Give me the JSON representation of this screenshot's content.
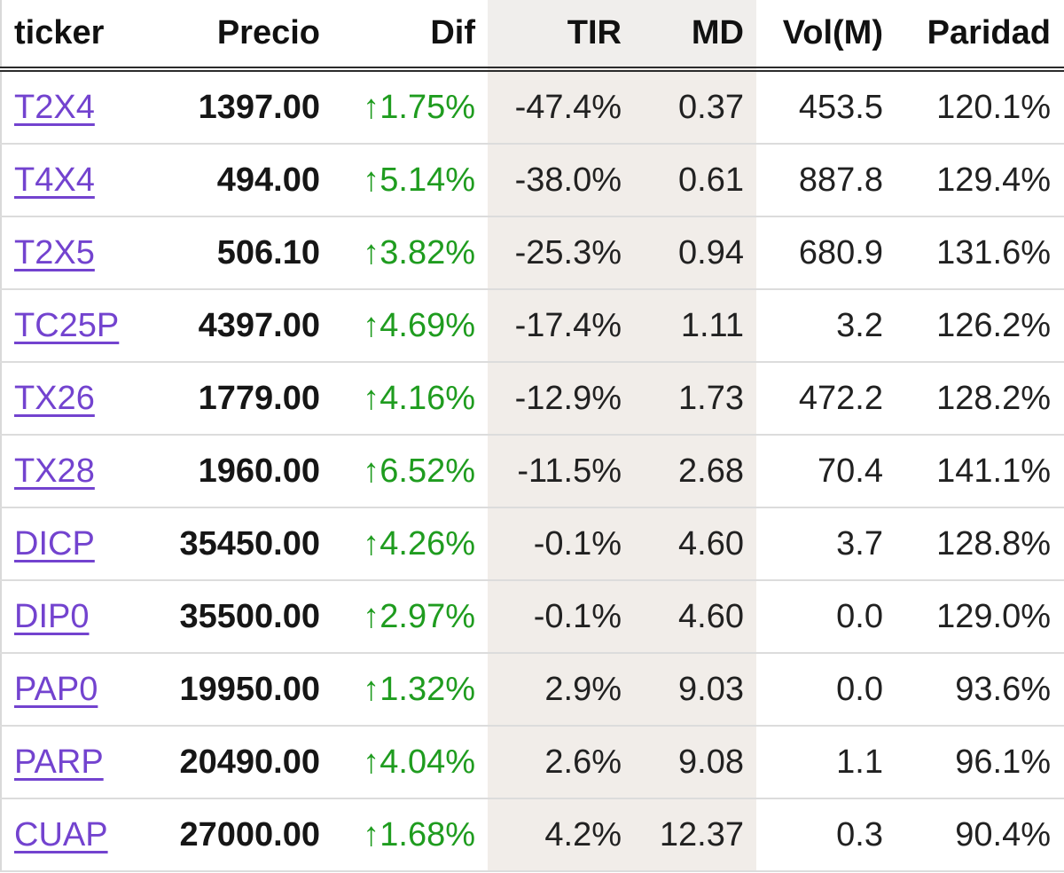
{
  "icons": {
    "up_arrow": "↑"
  },
  "colors": {
    "gain_green": "#1f9c1f",
    "ticker_link_purple": "#7343cf",
    "tir_md_band_bg": "#f1ede9",
    "row_separator": "#dcdcdc",
    "header_border": "#2b2b2b"
  },
  "table": {
    "columns": [
      {
        "key": "ticker",
        "label": "ticker"
      },
      {
        "key": "precio",
        "label": "Precio"
      },
      {
        "key": "dif",
        "label": "Dif"
      },
      {
        "key": "tir",
        "label": "TIR"
      },
      {
        "key": "md",
        "label": "MD"
      },
      {
        "key": "vol",
        "label": "Vol(M)"
      },
      {
        "key": "paridad",
        "label": "Paridad"
      }
    ],
    "rows": [
      {
        "ticker": "T2X4",
        "precio": "1397.00",
        "dif": "1.75%",
        "dif_direction": "up",
        "tir": "-47.4%",
        "md": "0.37",
        "vol": "453.5",
        "paridad": "120.1%"
      },
      {
        "ticker": "T4X4",
        "precio": "494.00",
        "dif": "5.14%",
        "dif_direction": "up",
        "tir": "-38.0%",
        "md": "0.61",
        "vol": "887.8",
        "paridad": "129.4%"
      },
      {
        "ticker": "T2X5",
        "precio": "506.10",
        "dif": "3.82%",
        "dif_direction": "up",
        "tir": "-25.3%",
        "md": "0.94",
        "vol": "680.9",
        "paridad": "131.6%"
      },
      {
        "ticker": "TC25P",
        "precio": "4397.00",
        "dif": "4.69%",
        "dif_direction": "up",
        "tir": "-17.4%",
        "md": "1.11",
        "vol": "3.2",
        "paridad": "126.2%"
      },
      {
        "ticker": "TX26",
        "precio": "1779.00",
        "dif": "4.16%",
        "dif_direction": "up",
        "tir": "-12.9%",
        "md": "1.73",
        "vol": "472.2",
        "paridad": "128.2%"
      },
      {
        "ticker": "TX28",
        "precio": "1960.00",
        "dif": "6.52%",
        "dif_direction": "up",
        "tir": "-11.5%",
        "md": "2.68",
        "vol": "70.4",
        "paridad": "141.1%"
      },
      {
        "ticker": "DICP",
        "precio": "35450.00",
        "dif": "4.26%",
        "dif_direction": "up",
        "tir": "-0.1%",
        "md": "4.60",
        "vol": "3.7",
        "paridad": "128.8%"
      },
      {
        "ticker": "DIP0",
        "precio": "35500.00",
        "dif": "2.97%",
        "dif_direction": "up",
        "tir": "-0.1%",
        "md": "4.60",
        "vol": "0.0",
        "paridad": "129.0%"
      },
      {
        "ticker": "PAP0",
        "precio": "19950.00",
        "dif": "1.32%",
        "dif_direction": "up",
        "tir": "2.9%",
        "md": "9.03",
        "vol": "0.0",
        "paridad": "93.6%"
      },
      {
        "ticker": "PARP",
        "precio": "20490.00",
        "dif": "4.04%",
        "dif_direction": "up",
        "tir": "2.6%",
        "md": "9.08",
        "vol": "1.1",
        "paridad": "96.1%"
      },
      {
        "ticker": "CUAP",
        "precio": "27000.00",
        "dif": "1.68%",
        "dif_direction": "up",
        "tir": "4.2%",
        "md": "12.37",
        "vol": "0.3",
        "paridad": "90.4%"
      }
    ]
  }
}
